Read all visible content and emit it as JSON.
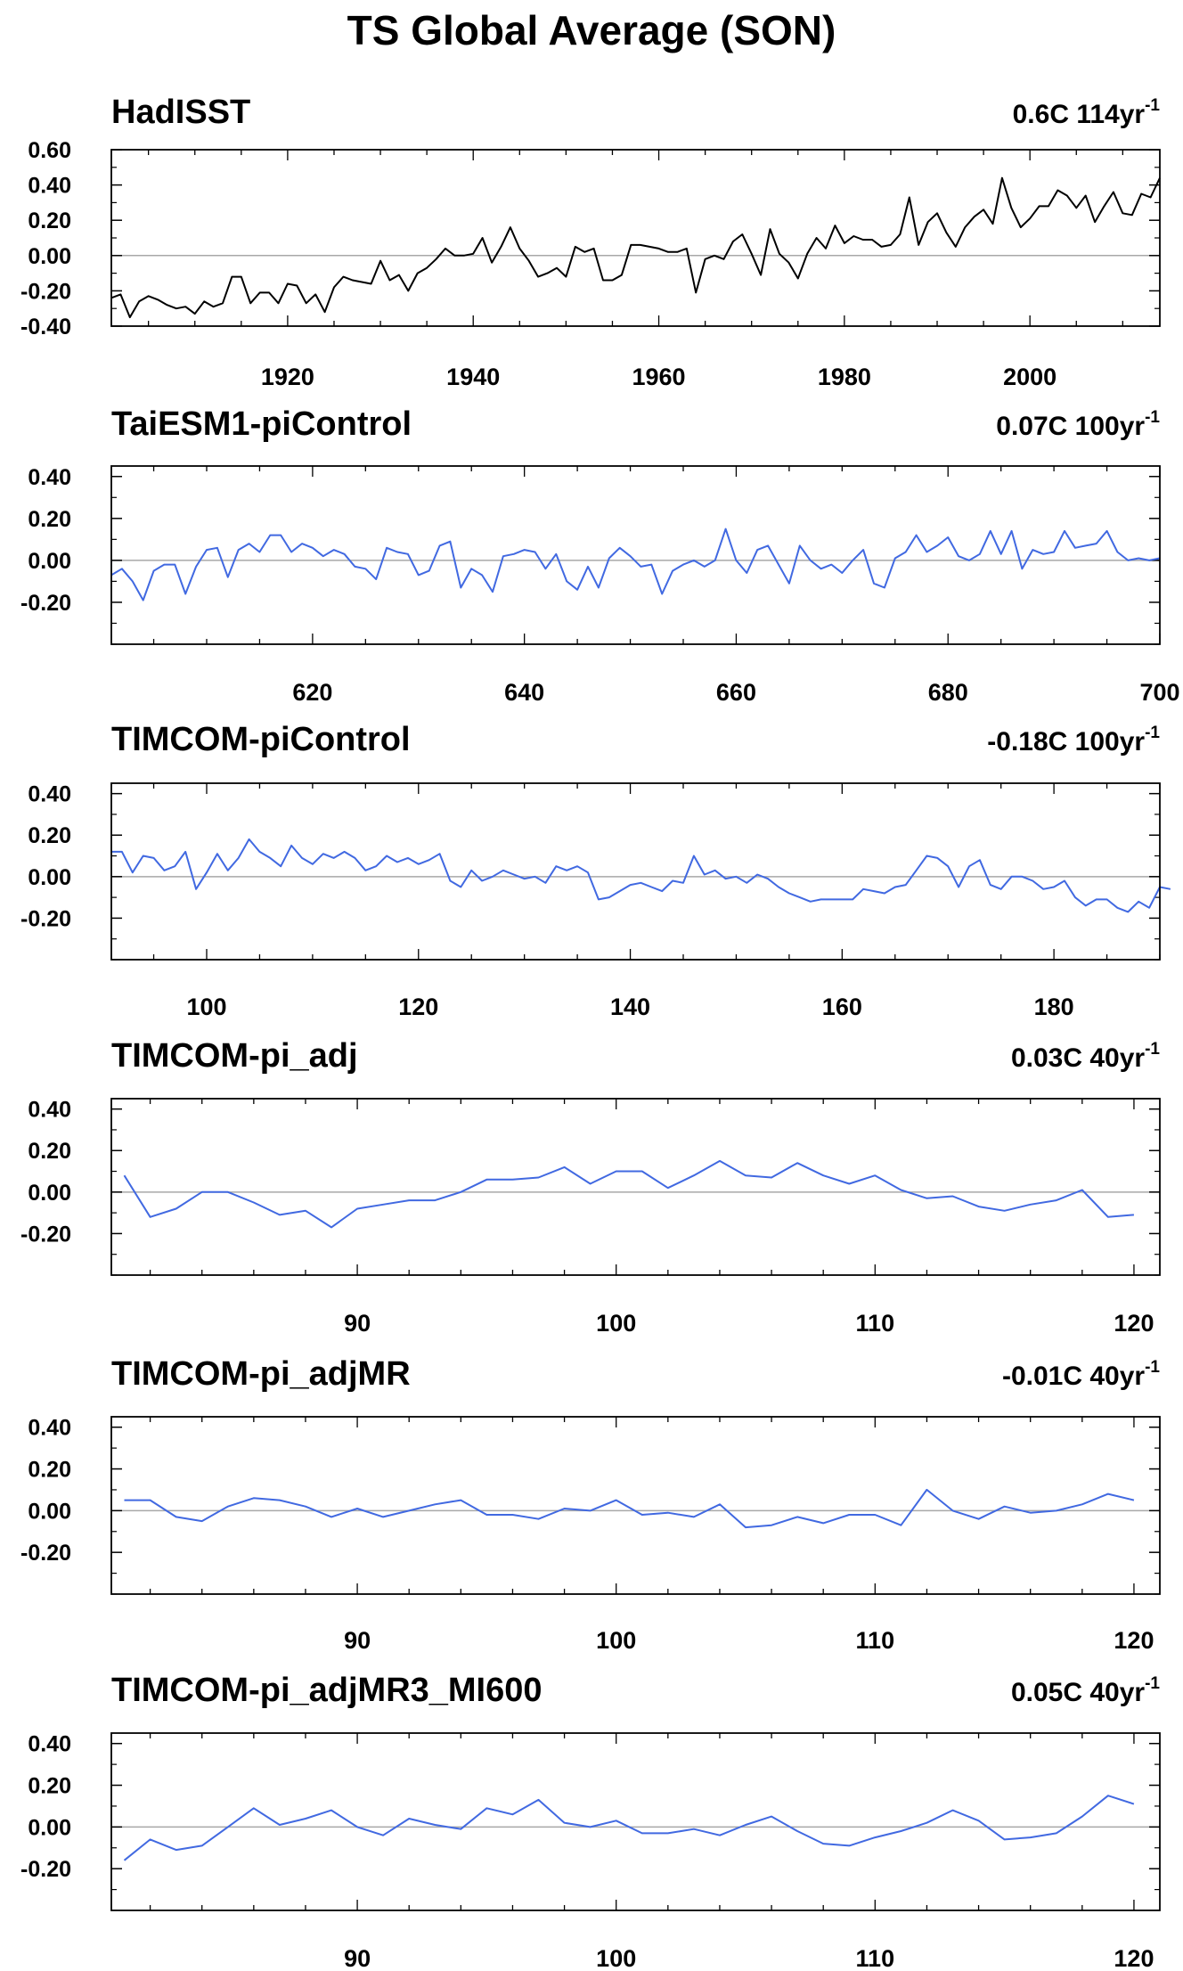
{
  "title": "TS Global Average (SON)",
  "chart_data": [
    {
      "type": "line",
      "panel_title": "HadISST",
      "trend_value": "0.6C 114yr",
      "trend_exp": "-1",
      "line_color": "#000000",
      "xlim": [
        1901,
        2014
      ],
      "ylim": [
        -0.4,
        0.6
      ],
      "yticks": [
        -0.4,
        -0.2,
        0.0,
        0.2,
        0.4,
        0.6
      ],
      "ytick_labels": [
        "-0.40",
        "-0.20",
        "0.00",
        "0.20",
        "0.40",
        "0.60"
      ],
      "xticks": [
        1920,
        1940,
        1960,
        1980,
        2000
      ],
      "xtick_labels": [
        "1920",
        "1940",
        "1960",
        "1980",
        "2000"
      ],
      "x_start": 1901,
      "values": [
        -0.24,
        -0.22,
        -0.35,
        -0.26,
        -0.23,
        -0.25,
        -0.28,
        -0.3,
        -0.29,
        -0.33,
        -0.26,
        -0.29,
        -0.27,
        -0.12,
        -0.12,
        -0.27,
        -0.21,
        -0.21,
        -0.27,
        -0.16,
        -0.17,
        -0.27,
        -0.22,
        -0.32,
        -0.18,
        -0.12,
        -0.14,
        -0.15,
        -0.16,
        -0.03,
        -0.14,
        -0.11,
        -0.2,
        -0.1,
        -0.07,
        -0.02,
        0.04,
        0.0,
        0.0,
        0.01,
        0.1,
        -0.04,
        0.05,
        0.16,
        0.04,
        -0.03,
        -0.12,
        -0.1,
        -0.07,
        -0.12,
        0.05,
        0.02,
        0.04,
        -0.14,
        -0.14,
        -0.11,
        0.06,
        0.06,
        0.05,
        0.04,
        0.02,
        0.02,
        0.04,
        -0.21,
        -0.02,
        0.0,
        -0.02,
        0.08,
        0.12,
        0.01,
        -0.11,
        0.15,
        0.01,
        -0.04,
        -0.13,
        0.01,
        0.1,
        0.04,
        0.17,
        0.07,
        0.11,
        0.09,
        0.09,
        0.05,
        0.06,
        0.12,
        0.33,
        0.06,
        0.19,
        0.24,
        0.13,
        0.05,
        0.16,
        0.22,
        0.26,
        0.18,
        0.44,
        0.27,
        0.16,
        0.21,
        0.28,
        0.28,
        0.37,
        0.34,
        0.27,
        0.34,
        0.19,
        0.28,
        0.36,
        0.24,
        0.23,
        0.35,
        0.33,
        0.44
      ]
    },
    {
      "type": "line",
      "panel_title": "TaiESM1-piControl",
      "trend_value": "0.07C 100yr",
      "trend_exp": "-1",
      "line_color": "#4169e1",
      "xlim": [
        601,
        700
      ],
      "ylim": [
        -0.4,
        0.45
      ],
      "yticks": [
        -0.2,
        0.0,
        0.2,
        0.4
      ],
      "ytick_labels": [
        "-0.20",
        "0.00",
        "0.20",
        "0.40"
      ],
      "xticks": [
        620,
        640,
        660,
        680,
        700
      ],
      "xtick_labels": [
        "620",
        "640",
        "660",
        "680",
        "700"
      ],
      "x_start": 601,
      "values": [
        -0.07,
        -0.04,
        -0.1,
        -0.19,
        -0.05,
        -0.02,
        -0.02,
        -0.16,
        -0.03,
        0.05,
        0.06,
        -0.08,
        0.05,
        0.08,
        0.04,
        0.12,
        0.12,
        0.04,
        0.08,
        0.06,
        0.02,
        0.05,
        0.03,
        -0.03,
        -0.04,
        -0.09,
        0.06,
        0.04,
        0.03,
        -0.07,
        -0.05,
        0.07,
        0.09,
        -0.13,
        -0.04,
        -0.07,
        -0.15,
        0.02,
        0.03,
        0.05,
        0.04,
        -0.04,
        0.03,
        -0.1,
        -0.14,
        -0.03,
        -0.13,
        0.01,
        0.06,
        0.02,
        -0.03,
        -0.02,
        -0.16,
        -0.05,
        -0.02,
        0.0,
        -0.03,
        0.0,
        0.15,
        0.0,
        -0.06,
        0.05,
        0.07,
        -0.02,
        -0.11,
        0.07,
        0.0,
        -0.04,
        -0.02,
        -0.06,
        0.0,
        0.05,
        -0.11,
        -0.13,
        0.01,
        0.04,
        0.12,
        0.04,
        0.07,
        0.11,
        0.02,
        0.0,
        0.03,
        0.14,
        0.03,
        0.14,
        -0.04,
        0.05,
        0.03,
        0.04,
        0.14,
        0.06,
        0.07,
        0.08,
        0.14,
        0.04,
        0.0,
        0.01,
        0.0,
        0.01
      ]
    },
    {
      "type": "line",
      "panel_title": "TIMCOM-piControl",
      "trend_value": "-0.18C 100yr",
      "trend_exp": "-1",
      "line_color": "#4169e1",
      "xlim": [
        91,
        190
      ],
      "ylim": [
        -0.4,
        0.45
      ],
      "yticks": [
        -0.2,
        0.0,
        0.2,
        0.4
      ],
      "ytick_labels": [
        "-0.20",
        "0.00",
        "0.20",
        "0.40"
      ],
      "xticks": [
        100,
        120,
        140,
        160,
        180
      ],
      "xtick_labels": [
        "100",
        "120",
        "140",
        "160",
        "180"
      ],
      "x_start": 91,
      "values": [
        0.12,
        0.12,
        0.02,
        0.1,
        0.09,
        0.03,
        0.05,
        0.12,
        -0.06,
        0.02,
        0.11,
        0.03,
        0.09,
        0.18,
        0.12,
        0.09,
        0.05,
        0.15,
        0.09,
        0.06,
        0.11,
        0.09,
        0.12,
        0.09,
        0.03,
        0.05,
        0.1,
        0.07,
        0.09,
        0.06,
        0.08,
        0.11,
        -0.02,
        -0.05,
        0.03,
        -0.02,
        0.0,
        0.03,
        0.01,
        -0.01,
        0.0,
        -0.03,
        0.05,
        0.03,
        0.05,
        0.02,
        -0.11,
        -0.1,
        -0.07,
        -0.04,
        -0.03,
        -0.05,
        -0.07,
        -0.02,
        -0.03,
        0.1,
        0.01,
        0.03,
        -0.01,
        0.0,
        -0.03,
        0.01,
        -0.01,
        -0.05,
        -0.08,
        -0.1,
        -0.12,
        -0.11,
        -0.11,
        -0.11,
        -0.11,
        -0.06,
        -0.07,
        -0.08,
        -0.05,
        -0.04,
        0.03,
        0.1,
        0.09,
        0.05,
        -0.05,
        0.05,
        0.08,
        -0.04,
        -0.06,
        0.0,
        0.0,
        -0.02,
        -0.06,
        -0.05,
        -0.02,
        -0.1,
        -0.14,
        -0.11,
        -0.11,
        -0.15,
        -0.17,
        -0.12,
        -0.15,
        -0.05,
        -0.06
      ]
    },
    {
      "type": "line",
      "panel_title": "TIMCOM-pi_adj",
      "trend_value": "0.03C 40yr",
      "trend_exp": "-1",
      "line_color": "#4169e1",
      "xlim": [
        80.5,
        121
      ],
      "ylim": [
        -0.4,
        0.45
      ],
      "yticks": [
        -0.2,
        0.0,
        0.2,
        0.4
      ],
      "ytick_labels": [
        "-0.20",
        "0.00",
        "0.20",
        "0.40"
      ],
      "xticks": [
        90,
        100,
        110,
        120
      ],
      "xtick_labels": [
        "90",
        "100",
        "110",
        "120"
      ],
      "x_start": 81,
      "values": [
        0.08,
        -0.12,
        -0.08,
        0.0,
        0.0,
        -0.05,
        -0.11,
        -0.09,
        -0.17,
        -0.08,
        -0.06,
        -0.04,
        -0.04,
        0.0,
        0.06,
        0.06,
        0.07,
        0.12,
        0.04,
        0.1,
        0.1,
        0.02,
        0.08,
        0.15,
        0.08,
        0.07,
        0.14,
        0.08,
        0.04,
        0.08,
        0.01,
        -0.03,
        -0.02,
        -0.07,
        -0.09,
        -0.06,
        -0.04,
        0.01,
        -0.12,
        -0.11
      ]
    },
    {
      "type": "line",
      "panel_title": "TIMCOM-pi_adjMR",
      "trend_value": "-0.01C 40yr",
      "trend_exp": "-1",
      "line_color": "#4169e1",
      "xlim": [
        80.5,
        121
      ],
      "ylim": [
        -0.4,
        0.45
      ],
      "yticks": [
        -0.2,
        0.0,
        0.2,
        0.4
      ],
      "ytick_labels": [
        "-0.20",
        "0.00",
        "0.20",
        "0.40"
      ],
      "xticks": [
        90,
        100,
        110,
        120
      ],
      "xtick_labels": [
        "90",
        "100",
        "110",
        "120"
      ],
      "x_start": 81,
      "values": [
        0.05,
        0.05,
        -0.03,
        -0.05,
        0.02,
        0.06,
        0.05,
        0.02,
        -0.03,
        0.01,
        -0.03,
        0.0,
        0.03,
        0.05,
        -0.02,
        -0.02,
        -0.04,
        0.01,
        0.0,
        0.05,
        -0.02,
        -0.01,
        -0.03,
        0.03,
        -0.08,
        -0.07,
        -0.03,
        -0.06,
        -0.02,
        -0.02,
        -0.07,
        0.1,
        0.0,
        -0.04,
        0.02,
        -0.01,
        0.0,
        0.03,
        0.08,
        0.05
      ]
    },
    {
      "type": "line",
      "panel_title": "TIMCOM-pi_adjMR3_MI600",
      "trend_value": "0.05C 40yr",
      "trend_exp": "-1",
      "line_color": "#4169e1",
      "xlim": [
        80.5,
        121
      ],
      "ylim": [
        -0.4,
        0.45
      ],
      "yticks": [
        -0.2,
        0.0,
        0.2,
        0.4
      ],
      "ytick_labels": [
        "-0.20",
        "0.00",
        "0.20",
        "0.40"
      ],
      "xticks": [
        90,
        100,
        110,
        120
      ],
      "xtick_labels": [
        "90",
        "100",
        "110",
        "120"
      ],
      "x_start": 81,
      "values": [
        -0.16,
        -0.06,
        -0.11,
        -0.09,
        0.0,
        0.09,
        0.01,
        0.04,
        0.08,
        0.0,
        -0.04,
        0.04,
        0.01,
        -0.01,
        0.09,
        0.06,
        0.13,
        0.02,
        0.0,
        0.03,
        -0.03,
        -0.03,
        -0.01,
        -0.04,
        0.01,
        0.05,
        -0.02,
        -0.08,
        -0.09,
        -0.05,
        -0.02,
        0.02,
        0.08,
        0.03,
        -0.06,
        -0.05,
        -0.03,
        0.05,
        0.15,
        0.11
      ]
    }
  ]
}
